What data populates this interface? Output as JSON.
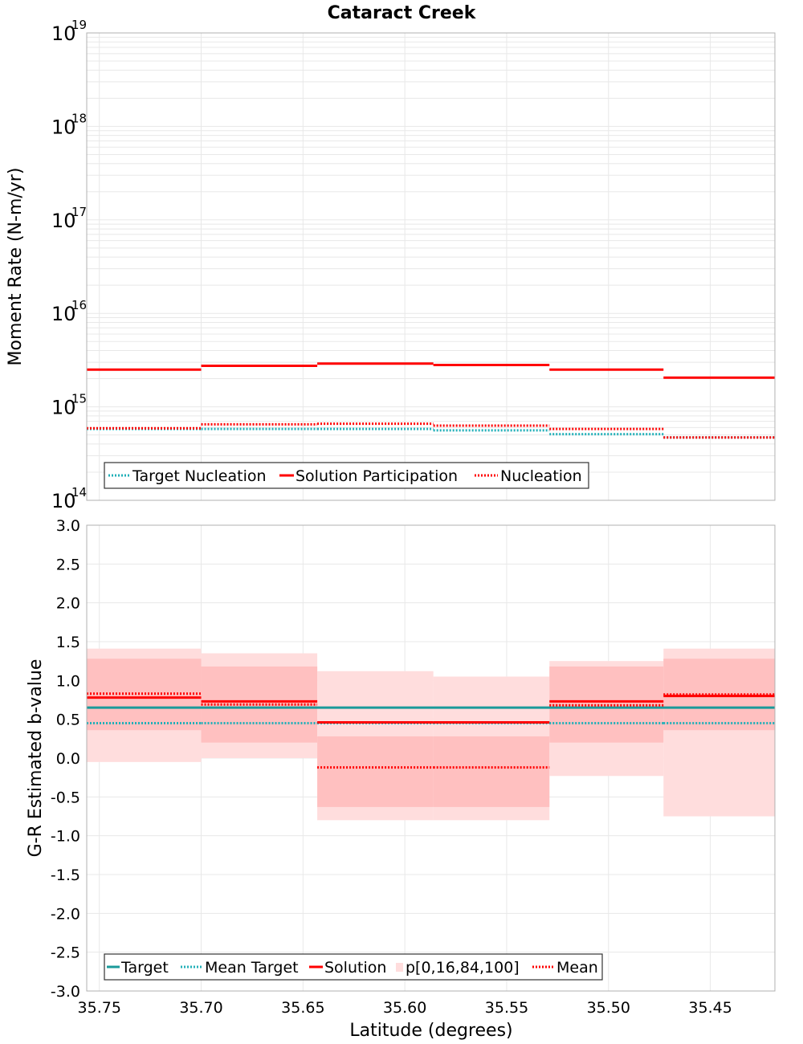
{
  "title": "Cataract Creek",
  "colors": {
    "target": "#1a9a9a",
    "target_dotted": "#22b0b8",
    "solution": "#ff0000",
    "band_outer": "#ffdddd",
    "band_inner": "#ffc0c0",
    "grid": "#e8e8e8",
    "frame": "#b0b0b0"
  },
  "chart_data": [
    {
      "type": "line",
      "panel": "moment-rate",
      "title": "Cataract Creek",
      "xlabel": "",
      "ylabel": "Moment Rate (N-m/yr)",
      "yscale": "log",
      "ylim": [
        100000000000000.0,
        1e+19
      ],
      "xlim": [
        35.7562,
        35.4183
      ],
      "y_ticks": [
        {
          "base": "10",
          "exp": "14"
        },
        {
          "base": "10",
          "exp": "15"
        },
        {
          "base": "10",
          "exp": "16"
        },
        {
          "base": "10",
          "exp": "17"
        },
        {
          "base": "10",
          "exp": "18"
        },
        {
          "base": "10",
          "exp": "19"
        }
      ],
      "grid": true,
      "legend_position": "bottom-left",
      "segments": [
        {
          "x0": 35.7562,
          "x1": 35.7
        },
        {
          "x0": 35.7,
          "x1": 35.643
        },
        {
          "x0": 35.643,
          "x1": 35.586
        },
        {
          "x0": 35.586,
          "x1": 35.529
        },
        {
          "x0": 35.529,
          "x1": 35.473
        },
        {
          "x0": 35.473,
          "x1": 35.4183
        }
      ],
      "series": [
        {
          "name": "Target Nucleation",
          "style": "dotted",
          "color": "#22b0b8",
          "values": [
            580000000000000.0,
            580000000000000.0,
            580000000000000.0,
            560000000000000.0,
            510000000000000.0,
            470000000000000.0
          ]
        },
        {
          "name": "Solution Participation",
          "style": "solid",
          "color": "#ff0000",
          "values": [
            2500000000000000.0,
            2750000000000000.0,
            2900000000000000.0,
            2800000000000000.0,
            2500000000000000.0,
            2050000000000000.0
          ]
        },
        {
          "name": "Nucleation",
          "style": "dotted",
          "color": "#ff0000",
          "values": [
            590000000000000.0,
            650000000000000.0,
            660000000000000.0,
            630000000000000.0,
            580000000000000.0,
            470000000000000.0
          ]
        }
      ]
    },
    {
      "type": "line",
      "panel": "b-value",
      "title": "",
      "xlabel": "Latitude (degrees)",
      "ylabel": "G-R Estimated b-value",
      "yscale": "linear",
      "ylim": [
        -3.0,
        3.0
      ],
      "xlim": [
        35.7562,
        35.4183
      ],
      "y_ticks": [
        "3.0",
        "2.5",
        "2.0",
        "1.5",
        "1.0",
        "0.5",
        "0.0",
        "-0.5",
        "-1.0",
        "-1.5",
        "-2.0",
        "-2.5",
        "-3.0"
      ],
      "x_ticks": [
        "35.75",
        "35.70",
        "35.65",
        "35.60",
        "35.55",
        "35.50",
        "35.45"
      ],
      "grid": true,
      "legend_position": "bottom-left",
      "segments": [
        {
          "x0": 35.7562,
          "x1": 35.7
        },
        {
          "x0": 35.7,
          "x1": 35.643
        },
        {
          "x0": 35.643,
          "x1": 35.586
        },
        {
          "x0": 35.586,
          "x1": 35.529
        },
        {
          "x0": 35.529,
          "x1": 35.473
        },
        {
          "x0": 35.473,
          "x1": 35.4183
        }
      ],
      "bands": {
        "name": "p[0,16,84,100]",
        "p0": [
          -0.05,
          0.0,
          -0.8,
          -0.8,
          -0.23,
          -0.75
        ],
        "p16": [
          0.36,
          0.2,
          -0.63,
          -0.63,
          0.2,
          0.36
        ],
        "p84": [
          1.28,
          1.18,
          0.28,
          0.28,
          1.18,
          1.28
        ],
        "p100": [
          1.41,
          1.35,
          1.12,
          1.05,
          1.25,
          1.41
        ]
      },
      "series": [
        {
          "name": "Target",
          "style": "solid",
          "color": "#1a9a9a",
          "values": [
            0.65,
            0.65,
            0.65,
            0.65,
            0.65,
            0.65
          ]
        },
        {
          "name": "Mean Target",
          "style": "dotted",
          "color": "#22b0b8",
          "values": [
            0.45,
            0.45,
            0.45,
            0.45,
            0.45,
            0.45
          ]
        },
        {
          "name": "Solution",
          "style": "solid",
          "color": "#ff0000",
          "values": [
            0.78,
            0.73,
            0.46,
            0.46,
            0.73,
            0.8
          ]
        },
        {
          "name": "Mean",
          "style": "dotted",
          "color": "#ff0000",
          "values": [
            0.83,
            0.69,
            -0.12,
            -0.12,
            0.68,
            0.82
          ]
        }
      ]
    }
  ]
}
